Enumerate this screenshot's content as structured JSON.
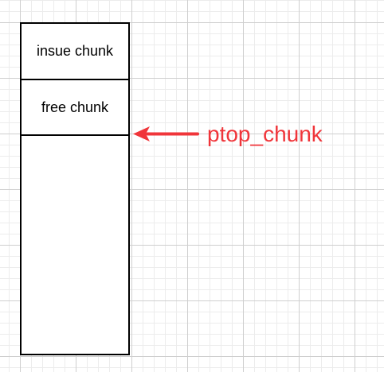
{
  "blocks": {
    "insue": "insue chunk",
    "free": "free chunk"
  },
  "pointer": {
    "label": "ptop_chunk",
    "color": "#f0353a"
  }
}
